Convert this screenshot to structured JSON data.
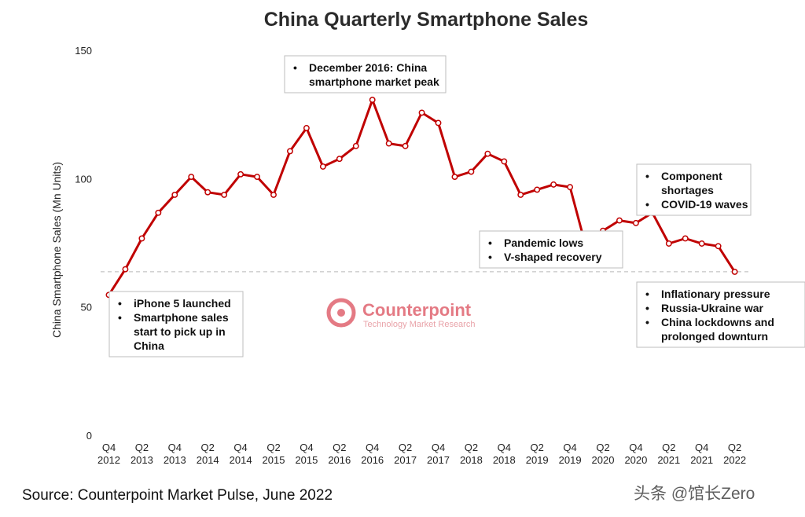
{
  "chart_data": {
    "type": "line",
    "title": "China Quarterly Smartphone Sales",
    "ylabel": "China Smartphone Sales (Mn Units)",
    "xlabel": "",
    "ylim": [
      0,
      150
    ],
    "yticks": [
      0,
      50,
      100,
      150
    ],
    "grid": false,
    "reference_line": 64,
    "x": [
      "Q4 2012",
      "Q1 2013",
      "Q2 2013",
      "Q3 2013",
      "Q4 2013",
      "Q1 2014",
      "Q2 2014",
      "Q3 2014",
      "Q4 2014",
      "Q1 2015",
      "Q2 2015",
      "Q3 2015",
      "Q4 2015",
      "Q1 2016",
      "Q2 2016",
      "Q3 2016",
      "Q4 2016",
      "Q1 2017",
      "Q2 2017",
      "Q3 2017",
      "Q4 2017",
      "Q1 2018",
      "Q2 2018",
      "Q3 2018",
      "Q4 2018",
      "Q1 2019",
      "Q2 2019",
      "Q3 2019",
      "Q4 2019",
      "Q1 2020",
      "Q2 2020",
      "Q3 2020",
      "Q4 2020",
      "Q1 2021",
      "Q2 2021",
      "Q3 2021",
      "Q4 2021",
      "Q1 2022",
      "Q2 2022"
    ],
    "x_tick_labels": [
      [
        "Q4",
        "2012"
      ],
      [
        "Q2",
        "2013"
      ],
      [
        "Q4",
        "2013"
      ],
      [
        "Q2",
        "2014"
      ],
      [
        "Q4",
        "2014"
      ],
      [
        "Q2",
        "2015"
      ],
      [
        "Q4",
        "2015"
      ],
      [
        "Q2",
        "2016"
      ],
      [
        "Q4",
        "2016"
      ],
      [
        "Q2",
        "2017"
      ],
      [
        "Q4",
        "2017"
      ],
      [
        "Q2",
        "2018"
      ],
      [
        "Q4",
        "2018"
      ],
      [
        "Q2",
        "2019"
      ],
      [
        "Q4",
        "2019"
      ],
      [
        "Q2",
        "2020"
      ],
      [
        "Q4",
        "2020"
      ],
      [
        "Q2",
        "2021"
      ],
      [
        "Q4",
        "2021"
      ],
      [
        "Q2",
        "2022"
      ]
    ],
    "series": [
      {
        "color": "#c00000",
        "values": [
          55,
          65,
          77,
          87,
          94,
          101,
          95,
          94,
          102,
          101,
          94,
          111,
          120,
          105,
          108,
          113,
          131,
          114,
          113,
          126,
          122,
          101,
          103,
          110,
          107,
          94,
          96,
          98,
          97,
          73,
          80,
          84,
          83,
          87,
          75,
          77,
          75,
          74,
          64
        ]
      }
    ],
    "annotations": [
      {
        "lines": [
          [
            "•",
            "iPhone 5 launched"
          ],
          [
            "•",
            "Smartphone sales"
          ],
          [
            "",
            "start to pick up in"
          ],
          [
            "",
            "China"
          ]
        ]
      },
      {
        "lines": [
          [
            "•",
            "December 2016: China"
          ],
          [
            "",
            "smartphone market peak"
          ]
        ]
      },
      {
        "lines": [
          [
            "•",
            "Pandemic lows"
          ],
          [
            "•",
            "V-shaped recovery"
          ]
        ]
      },
      {
        "lines": [
          [
            "•",
            "Component"
          ],
          [
            "",
            "shortages"
          ],
          [
            "•",
            "COVID-19 waves"
          ]
        ]
      },
      {
        "lines": [
          [
            "•",
            "Inflationary pressure"
          ],
          [
            "•",
            "Russia-Ukraine war"
          ],
          [
            "•",
            "China lockdowns and"
          ],
          [
            "",
            "prolonged downturn"
          ]
        ]
      }
    ]
  },
  "logo": {
    "name": "Counterpoint",
    "tagline": "Technology Market Research"
  },
  "footer": {
    "source": "Source: Counterpoint Market Pulse, June 2022",
    "watermark": "头条 @馆长Zero"
  }
}
